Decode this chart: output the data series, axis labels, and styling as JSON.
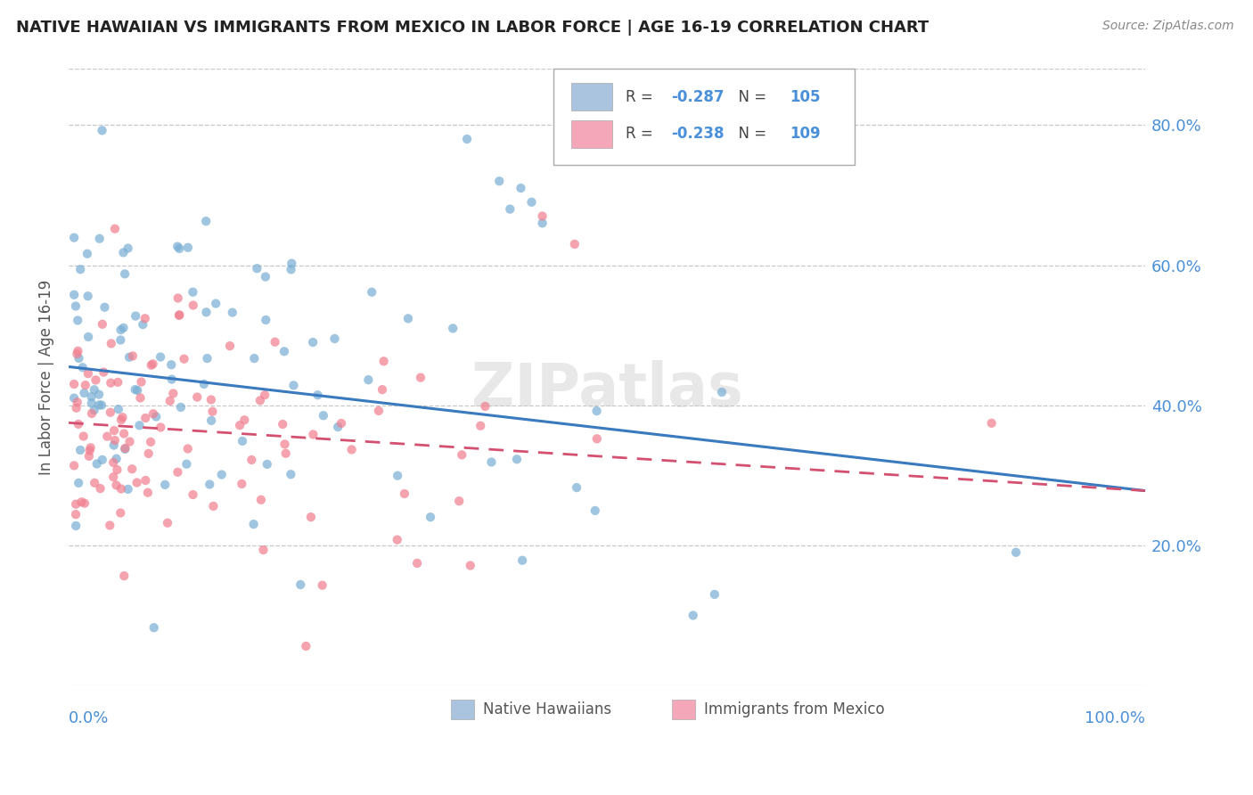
{
  "title": "NATIVE HAWAIIAN VS IMMIGRANTS FROM MEXICO IN LABOR FORCE | AGE 16-19 CORRELATION CHART",
  "source": "Source: ZipAtlas.com",
  "ylabel": "In Labor Force | Age 16-19",
  "legend1_R": "-0.287",
  "legend1_N": "105",
  "legend2_R": "-0.238",
  "legend2_N": "109",
  "legend1_color": "#aac4e0",
  "legend2_color": "#f4a7b9",
  "scatter1_color": "#7aafd4",
  "scatter2_color": "#f08090",
  "line1_color": "#3a7abf",
  "line2_color": "#d45070",
  "watermark": "ZIPatlas",
  "background_color": "#ffffff",
  "grid_color": "#c8c8c8",
  "title_color": "#222222",
  "right_axis_color": "#4a90d9",
  "blue_text_color": "#4a90d9",
  "x_blue_labels_color": "#4a90d9",
  "legend_label1": "Native Hawaiians",
  "legend_label2": "Immigrants from Mexico",
  "xlim": [
    0.0,
    1.0
  ],
  "ylim": [
    0.0,
    0.88
  ],
  "ytick_positions": [
    0.2,
    0.4,
    0.6,
    0.8
  ],
  "ytick_labels": [
    "20.0%",
    "40.0%",
    "60.0%",
    "80.0%"
  ],
  "line1_start_y": 0.455,
  "line1_end_y": 0.278,
  "line2_start_y": 0.375,
  "line2_end_y": 0.278
}
